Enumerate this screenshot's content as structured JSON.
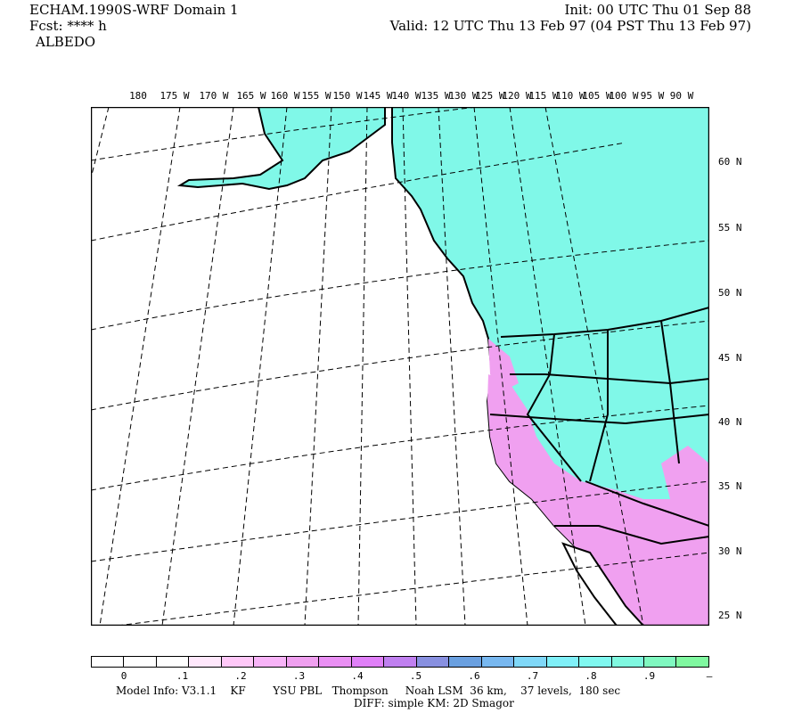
{
  "header": {
    "model": "ECHAM.1990S-WRF Domain 1",
    "forecast": "Fcst: **** h",
    "field": "ALBEDO",
    "init": "Init: 00 UTC Thu 01 Sep 88",
    "valid": "Valid: 12 UTC Thu 13 Feb 97 (04 PST Thu 13 Feb 97)"
  },
  "map": {
    "longitude_labels": [
      "180",
      "175 W",
      "170 W",
      "165 W",
      "160 W",
      "155 W",
      "150 W",
      "145 W",
      "140 W",
      "135 W",
      "130 W",
      "125 W",
      "120 W",
      "115 W",
      "110 W",
      "105 W",
      "100 W",
      "95 W",
      "90 W"
    ],
    "latitude_labels": [
      "60 N",
      "55 N",
      "50 N",
      "45 N",
      "40 N",
      "35 N",
      "30 N",
      "25 N"
    ],
    "colors": {
      "ocean": "#ffffff",
      "snow_land": "#80f8e8",
      "bare_land": "#f0a0f0",
      "desert": "#e890f8"
    }
  },
  "colorbar": {
    "colors": [
      "#ffffff",
      "#ffffff",
      "#ffffff",
      "#ffe8fc",
      "#ffc8f8",
      "#f8b4f8",
      "#f0a0f0",
      "#ea90f4",
      "#e080f8",
      "#c080f0",
      "#8890e0",
      "#6aa0e0",
      "#78b8f0",
      "#80d8f8",
      "#80f0f8",
      "#80f8f0",
      "#80f8e0",
      "#80f8c0",
      "#80f8a0",
      "#80f880"
    ],
    "labels": [
      "0",
      ".1",
      ".2",
      ".3",
      ".4",
      ".5",
      ".6",
      ".7",
      ".8",
      ".9",
      "–"
    ]
  },
  "footer": {
    "line1": "Model Info: V3.1.1    KF        YSU PBL   Thompson     Noah LSM  36 km,    37 levels,  180 sec",
    "line2": "DIFF: simple KM: 2D Smagor"
  }
}
